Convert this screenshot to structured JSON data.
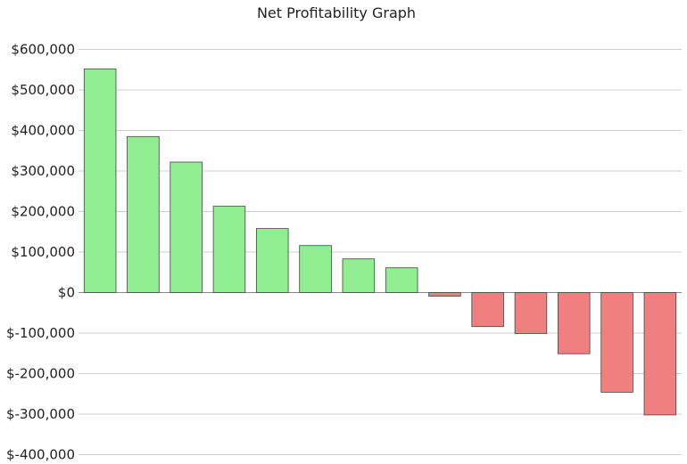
{
  "chart_data": {
    "type": "bar",
    "title": "Net Profitability Graph",
    "xlabel": "",
    "ylabel": "",
    "ylim": [
      -400000,
      600000
    ],
    "yticks": [
      600000,
      500000,
      400000,
      300000,
      200000,
      100000,
      0,
      -100000,
      -200000,
      -300000,
      -400000
    ],
    "ytick_labels": [
      "$600,000",
      "$500,000",
      "$400,000",
      "$300,000",
      "$200,000",
      "$100,000",
      "$0",
      "$-100,000",
      "$-200,000",
      "$-300,000",
      "$-400,000"
    ],
    "grid": true,
    "values": [
      552000,
      385000,
      322000,
      213000,
      158000,
      116000,
      83000,
      61000,
      -9000,
      -84000,
      -101000,
      -151000,
      -246000,
      -302000
    ],
    "colors": {
      "positive": "#90ee90",
      "negative": "#f08080"
    }
  }
}
